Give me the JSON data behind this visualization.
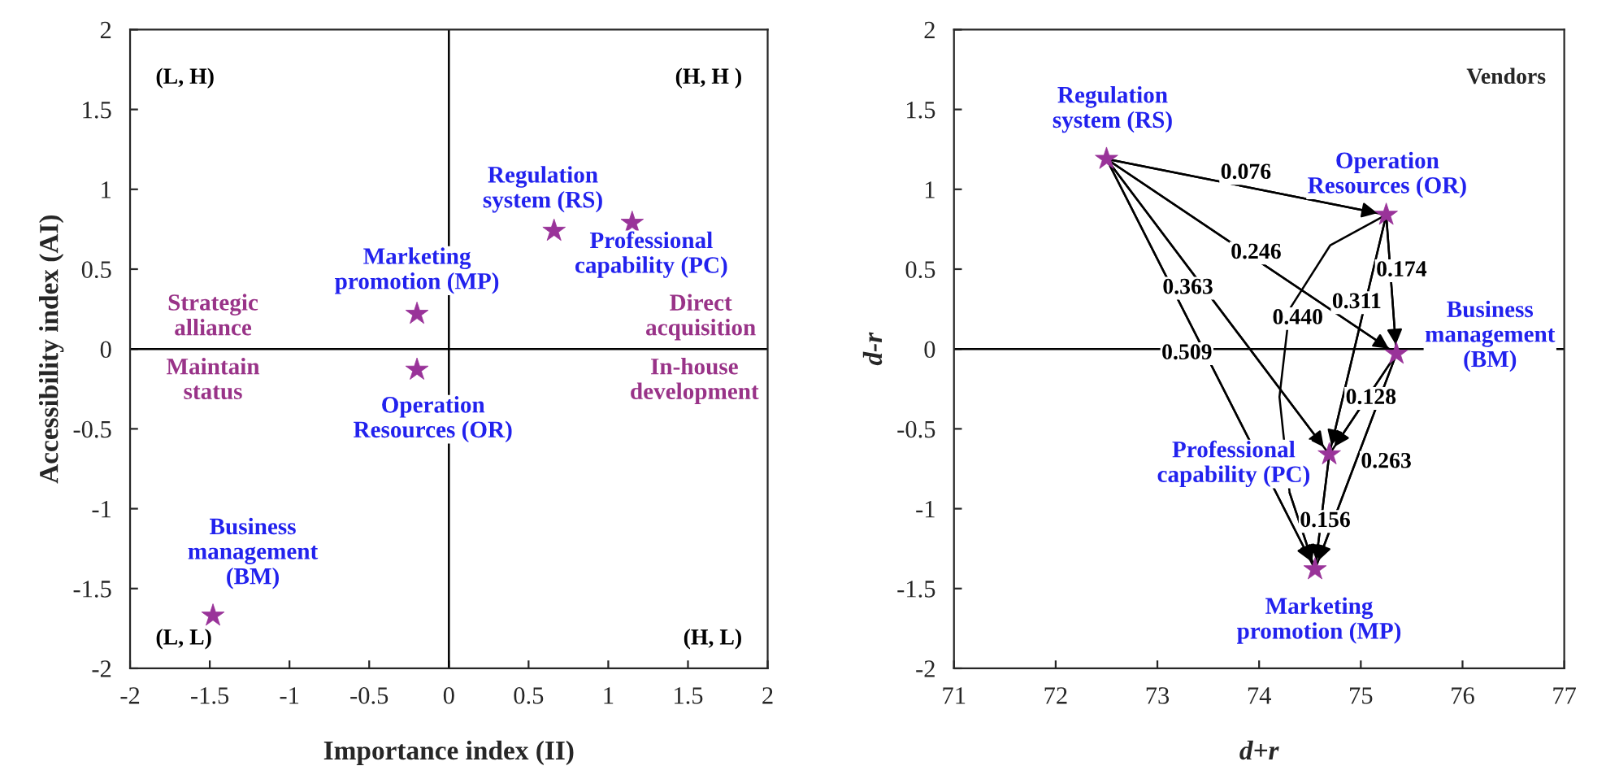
{
  "chart_data": [
    {
      "type": "scatter",
      "xlabel": "Importance index (II)",
      "ylabel": "Accessibility index (AI)",
      "xlim": [
        -2,
        2
      ],
      "ylim": [
        -2,
        2
      ],
      "xticks": [
        -2,
        -1.5,
        -1,
        -0.5,
        0,
        0.5,
        1,
        1.5,
        2
      ],
      "yticks": [
        -2,
        -1.5,
        -1,
        -0.5,
        0,
        0.5,
        1,
        1.5,
        2
      ],
      "grid": false,
      "series": [
        {
          "color": "#993399",
          "marker": "star",
          "x": [
            -1.48,
            -0.2,
            -0.2,
            0.66,
            1.15
          ],
          "values": [
            -1.67,
            0.22,
            -0.13,
            0.74,
            0.79
          ]
        }
      ],
      "ref_lines": [
        {
          "axis": "x",
          "value": 0
        },
        {
          "axis": "y",
          "value": 0
        }
      ],
      "annotations": [
        {
          "text": "Business\nmanagement\n(BM)",
          "x": -1.48,
          "y": -1.67
        },
        {
          "text": "Marketing\npromotion (MP)",
          "x": -0.2,
          "y": 0.22
        },
        {
          "text": "Operation\nResources (OR)",
          "x": -0.2,
          "y": -0.13
        },
        {
          "text": "Regulation\nsystem (RS)",
          "x": 0.66,
          "y": 0.74
        },
        {
          "text": "Professional\ncapability (PC)",
          "x": 1.15,
          "y": 0.79
        },
        "(L, H)",
        "(H, H )",
        "(L, L)",
        "(H, L)",
        "Strategic\nalliance",
        "Maintain\nstatus",
        "Direct\nacquisition",
        "In-house\ndevelopment"
      ]
    },
    {
      "type": "scatter",
      "xlabel": "d+r",
      "ylabel": "d-r",
      "xlim": [
        71,
        77
      ],
      "ylim": [
        -2,
        2
      ],
      "xticks": [
        71,
        72,
        73,
        74,
        75,
        76,
        77
      ],
      "yticks": [
        -2,
        -1.5,
        -1,
        -0.5,
        0,
        0.5,
        1,
        1.5,
        2
      ],
      "grid": false,
      "series": [
        {
          "color": "#993399",
          "marker": "star",
          "x": [
            72.5,
            75.25,
            75.35,
            74.69,
            74.55
          ],
          "values": [
            1.19,
            0.84,
            -0.03,
            -0.66,
            -1.38
          ]
        },
        {
          "type": "line",
          "color": "#000000",
          "x": [
            72.5,
            75.25
          ],
          "values": [
            1.19,
            0.84
          ]
        },
        {
          "type": "line",
          "color": "#000000",
          "x": [
            72.5,
            75.35
          ],
          "values": [
            1.19,
            -0.03
          ]
        },
        {
          "type": "line",
          "color": "#000000",
          "x": [
            72.5,
            74.69
          ],
          "values": [
            1.19,
            -0.66
          ]
        },
        {
          "type": "line",
          "color": "#000000",
          "x": [
            72.5,
            74.55
          ],
          "values": [
            1.19,
            -1.38
          ]
        },
        {
          "type": "line",
          "color": "#000000",
          "x": [
            75.25,
            75.35
          ],
          "values": [
            0.84,
            -0.03
          ]
        },
        {
          "type": "line",
          "color": "#000000",
          "x": [
            75.25,
            74.69
          ],
          "values": [
            0.84,
            -0.66
          ]
        },
        {
          "type": "line",
          "color": "#000000",
          "x": [
            75.25,
            74.7,
            74.3,
            74.2,
            74.3,
            74.55
          ],
          "values": [
            0.84,
            0.65,
            0.25,
            -0.3,
            -0.9,
            -1.38
          ]
        },
        {
          "type": "line",
          "color": "#000000",
          "x": [
            75.35,
            74.69
          ],
          "values": [
            -0.03,
            -0.66
          ]
        },
        {
          "type": "line",
          "color": "#000000",
          "x": [
            75.35,
            74.55
          ],
          "values": [
            -0.03,
            -1.38
          ]
        },
        {
          "type": "line",
          "color": "#000000",
          "x": [
            74.69,
            74.55
          ],
          "values": [
            -0.66,
            -1.38
          ]
        }
      ],
      "ref_lines": [
        {
          "axis": "y",
          "value": 0
        }
      ],
      "annotations": [
        {
          "text": "Regulation\nsystem (RS)",
          "x": 72.5,
          "y": 1.19
        },
        {
          "text": "Operation\nResources (OR)",
          "x": 75.25,
          "y": 0.84
        },
        {
          "text": "Business\nmanagement\n(BM)",
          "x": 75.35,
          "y": -0.03
        },
        {
          "text": "Professional\ncapability (PC)",
          "x": 74.69,
          "y": -0.66
        },
        {
          "text": "Marketing\npromotion (MP)",
          "x": 74.55,
          "y": -1.38
        },
        "Vendors",
        "0.076",
        "0.246",
        "0.363",
        "0.509",
        "0.174",
        "0.311",
        "0.440",
        "0.128",
        "0.263",
        "0.156"
      ]
    }
  ]
}
